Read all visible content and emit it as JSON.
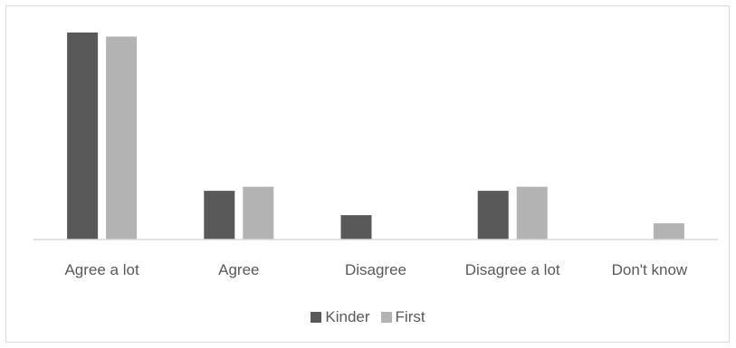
{
  "chart_data": {
    "type": "bar",
    "title": "",
    "xlabel": "",
    "ylabel": "",
    "categories": [
      "Agree a lot",
      "Agree",
      "Disagree",
      "Disagree a lot",
      "Don't know"
    ],
    "series": [
      {
        "name": "Kinder",
        "color": "#595959",
        "values": [
          51,
          12,
          6,
          12,
          0
        ]
      },
      {
        "name": "First",
        "color": "#b3b3b3",
        "values": [
          50,
          13,
          0,
          13,
          4
        ]
      }
    ],
    "ylim": [
      0,
      55
    ],
    "grid": false,
    "y_axis_visible": false,
    "legend_position": "bottom"
  }
}
